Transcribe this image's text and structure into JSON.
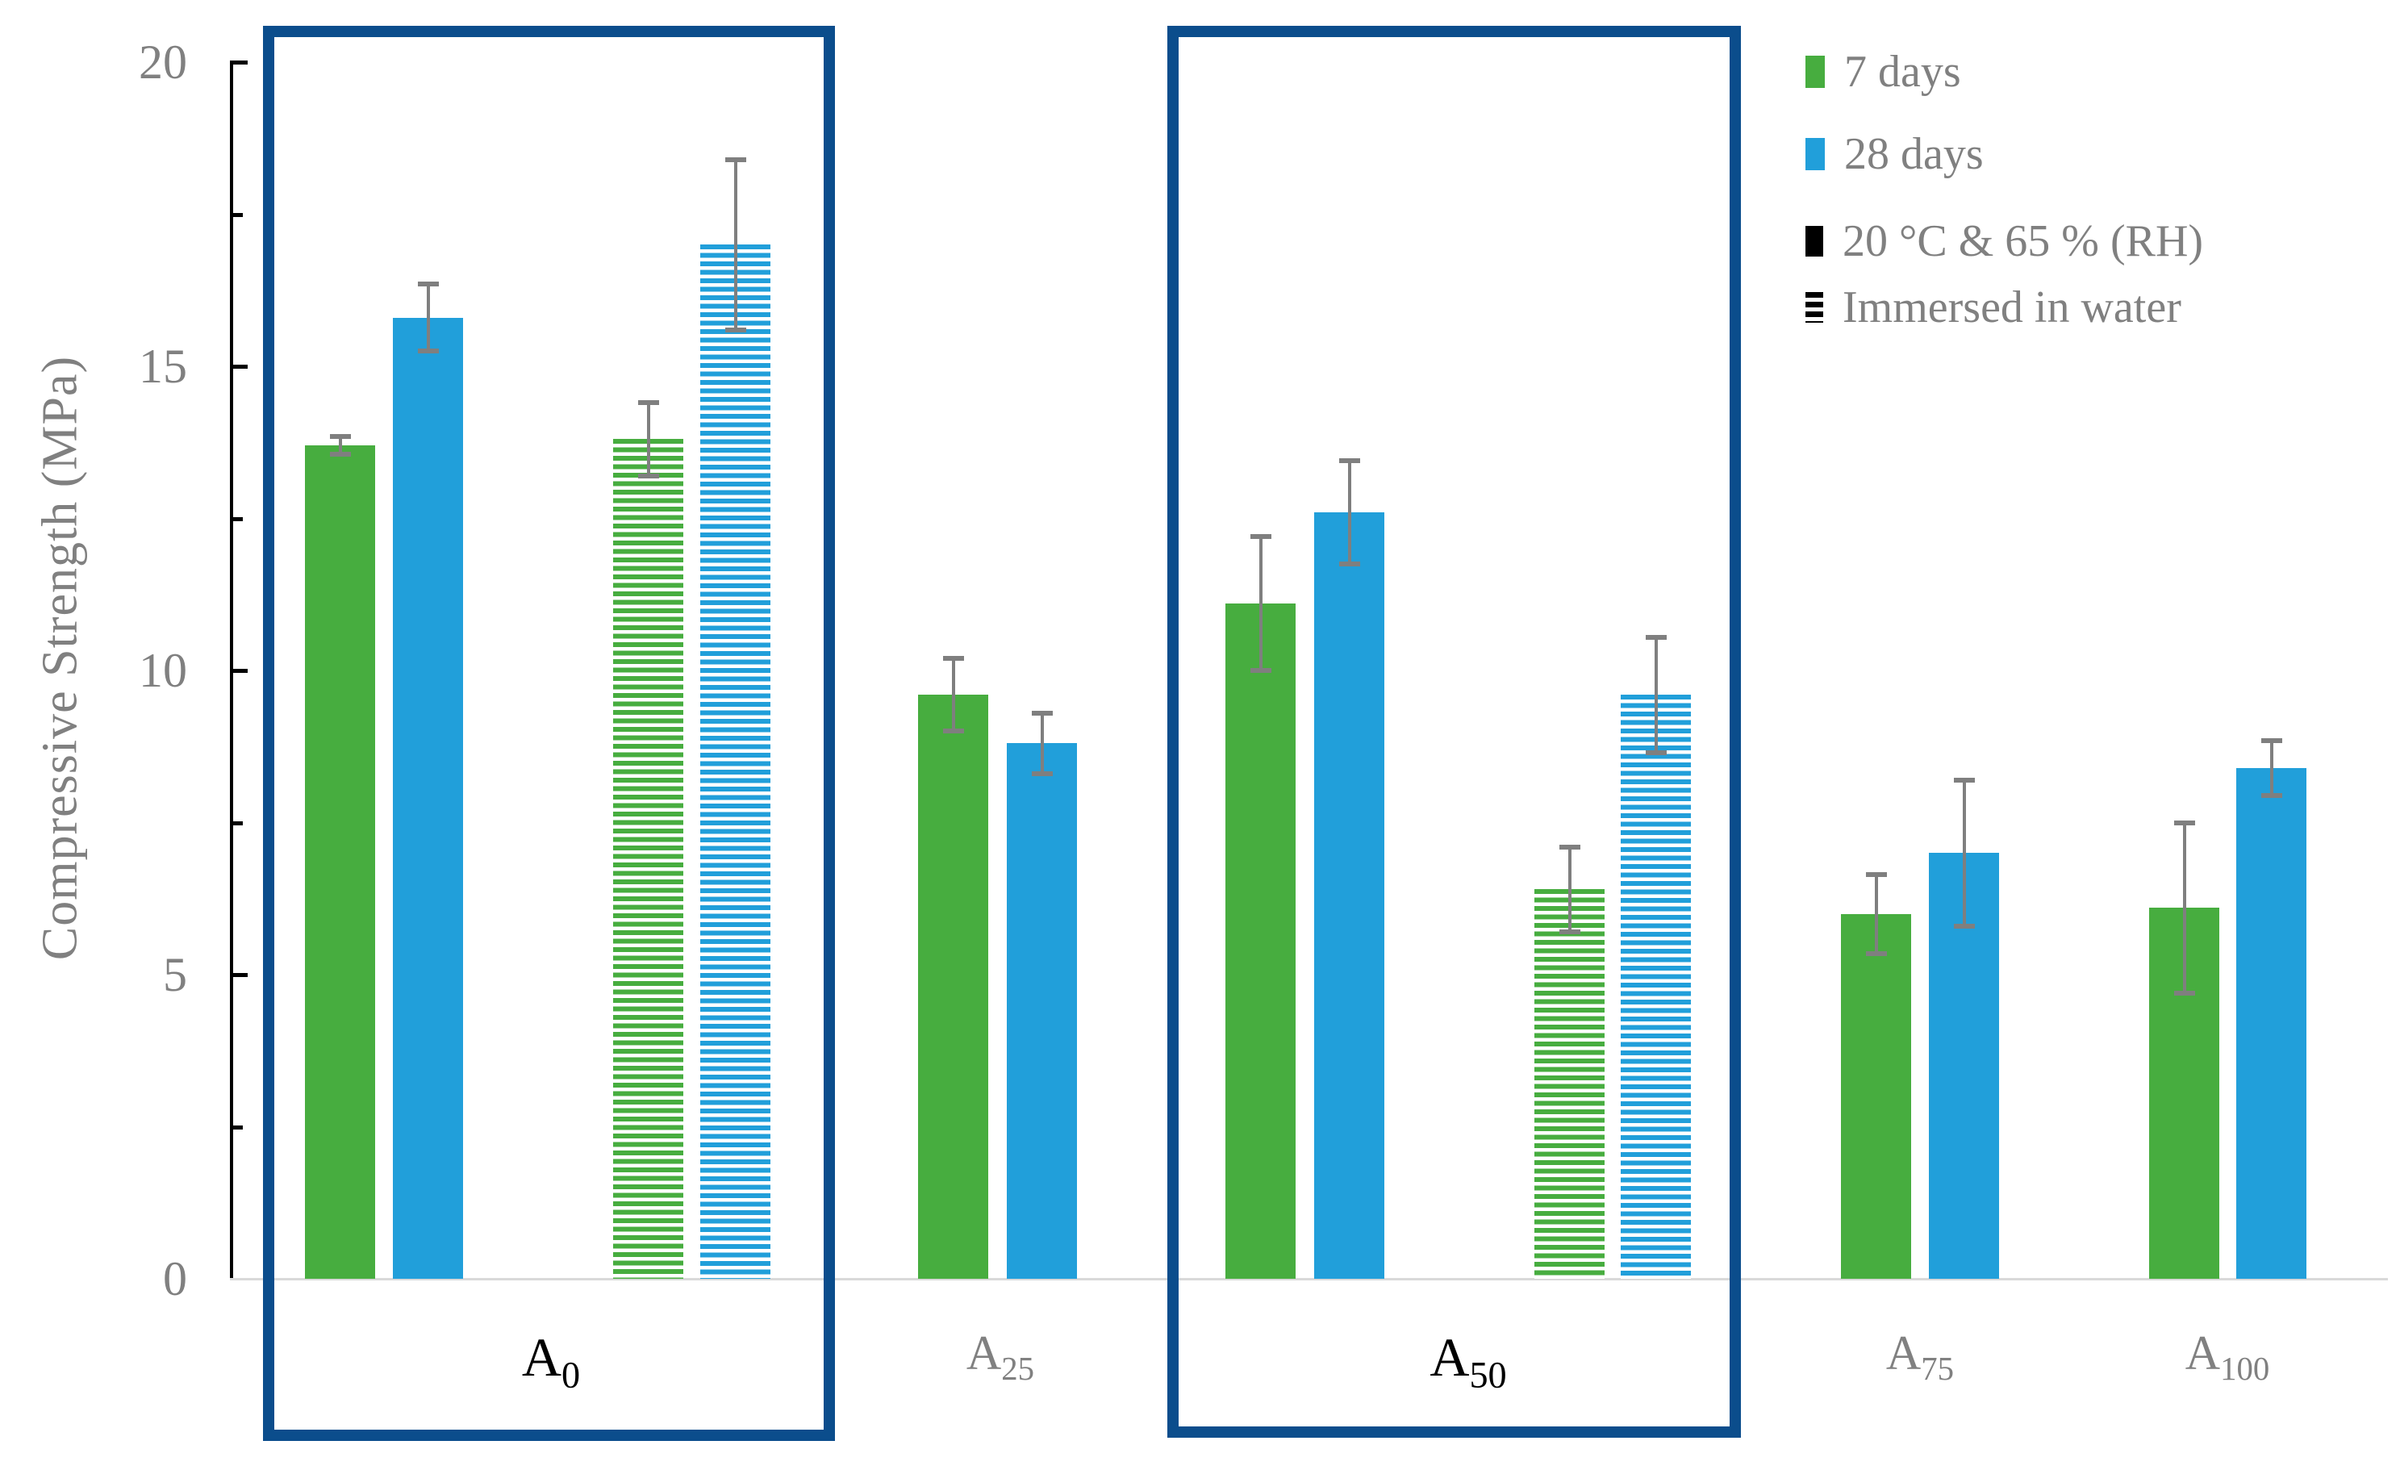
{
  "chart_data": {
    "type": "bar",
    "title": "",
    "xlabel": "",
    "ylabel": "Compressive Strength (MPa)",
    "ylim": [
      0,
      20
    ],
    "grid": false,
    "legend_position": "top-right",
    "yaxis": {
      "major_ticks": [
        {
          "v": 0,
          "label": "0"
        },
        {
          "v": 5,
          "label": "5"
        },
        {
          "v": 10,
          "label": "10"
        },
        {
          "v": 15,
          "label": "15"
        },
        {
          "v": 20,
          "label": "20"
        }
      ],
      "minor_ticks": [
        2.5,
        7.5,
        12.5,
        17.5
      ]
    },
    "series": [
      {
        "key": "7d-rh",
        "name": "7 days",
        "condition": "20 °C & 65 % (RH)",
        "color": "#47AD3F",
        "pattern": "solid"
      },
      {
        "key": "28d-rh",
        "name": "28 days",
        "condition": "20 °C & 65 % (RH)",
        "color": "#219FDA",
        "pattern": "solid"
      },
      {
        "key": "7d-im",
        "name": "7 days",
        "condition": "Immersed in water",
        "color": "#47AD3F",
        "pattern": "hatch"
      },
      {
        "key": "28d-im",
        "name": "28 days",
        "condition": "Immersed in water",
        "color": "#219FDA",
        "pattern": "hatch"
      }
    ],
    "groups": [
      {
        "id": "A0",
        "label_base": "A",
        "label_sub": "0",
        "boxed": true,
        "bars": [
          {
            "series": 0,
            "value": 13.7,
            "error": 0.15
          },
          {
            "series": 1,
            "value": 15.8,
            "error": 0.55
          },
          {
            "series": 2,
            "value": 13.8,
            "error": 0.6
          },
          {
            "series": 3,
            "value": 17.0,
            "error": 1.4
          }
        ]
      },
      {
        "id": "A25",
        "label_base": "A",
        "label_sub": "25",
        "boxed": false,
        "bars": [
          {
            "series": 0,
            "value": 9.6,
            "error": 0.6
          },
          {
            "series": 1,
            "value": 8.8,
            "error": 0.5
          }
        ]
      },
      {
        "id": "A50",
        "label_base": "A",
        "label_sub": "50",
        "boxed": true,
        "bars": [
          {
            "series": 0,
            "value": 11.1,
            "error": 1.1
          },
          {
            "series": 1,
            "value": 12.6,
            "error": 0.85
          },
          {
            "series": 2,
            "value": 6.4,
            "error": 0.7
          },
          {
            "series": 3,
            "value": 9.6,
            "error": 0.95
          }
        ]
      },
      {
        "id": "A75",
        "label_base": "A",
        "label_sub": "75",
        "boxed": false,
        "bars": [
          {
            "series": 0,
            "value": 6.0,
            "error": 0.65
          },
          {
            "series": 1,
            "value": 7.0,
            "error": 1.2
          }
        ]
      },
      {
        "id": "A100",
        "label_base": "A",
        "label_sub": "100",
        "boxed": false,
        "bars": [
          {
            "series": 0,
            "value": 6.1,
            "error": 1.4
          },
          {
            "series": 1,
            "value": 8.4,
            "error": 0.45
          }
        ]
      }
    ],
    "legend": [
      {
        "swatch": "green-solid",
        "label": "7 days"
      },
      {
        "swatch": "blue-solid",
        "label": "28 days"
      },
      {
        "swatch": "black-solid",
        "label": "20 °C & 65 % (RH)"
      },
      {
        "swatch": "black-hatch",
        "label": "Immersed in water"
      }
    ],
    "colors": {
      "green": "#47AD3F",
      "blue": "#219FDA",
      "box_border": "#0B4D8C",
      "axis": "#000000",
      "text_gray": "#808080",
      "error_bar": "#7F7F7F",
      "baseline": "#D9D9D9"
    }
  }
}
